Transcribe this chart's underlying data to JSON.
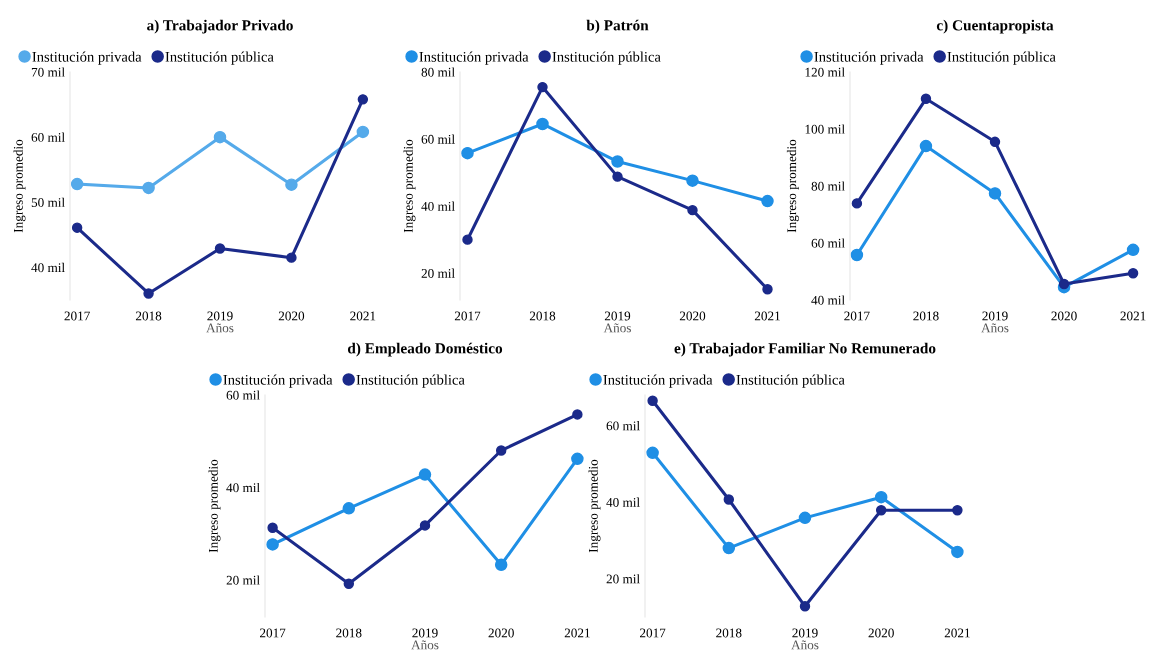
{
  "chart_data": [
    {
      "type": "line",
      "title": "a) Trabajador Privado",
      "xlabel": "Años",
      "ylabel": "Ingreso promedio",
      "categories": [
        "2017",
        "2018",
        "2019",
        "2020",
        "2021"
      ],
      "ylim": [
        35,
        70
      ],
      "yticks": [
        {
          "value": 40,
          "label": "40 mil"
        },
        {
          "value": 50,
          "label": "50 mil"
        },
        {
          "value": 60,
          "label": "60 mil"
        },
        {
          "value": 70,
          "label": "70 mil"
        }
      ],
      "marker": "circle",
      "grid": false,
      "legend": "top left",
      "series": [
        {
          "name": "Institución privada",
          "color": "#55aaea",
          "values": [
            52.8,
            52.2,
            60,
            52.7,
            60.8
          ]
        },
        {
          "name": "Institución pública",
          "color": "#1b2a8a",
          "values": [
            46.1,
            36.0,
            42.9,
            41.5,
            65.8
          ]
        }
      ]
    },
    {
      "type": "line",
      "title": "b) Patrón",
      "xlabel": "Años",
      "ylabel": "Ingreso promedio",
      "categories": [
        "2017",
        "2018",
        "2019",
        "2020",
        "2021"
      ],
      "ylim": [
        12,
        80
      ],
      "yticks": [
        {
          "value": 20,
          "label": "20 mil"
        },
        {
          "value": 40,
          "label": "40 mil"
        },
        {
          "value": 60,
          "label": "60 mil"
        },
        {
          "value": 80,
          "label": "80 mil"
        }
      ],
      "marker": "circle",
      "grid": false,
      "legend": "top left",
      "series": [
        {
          "name": "Institución privada",
          "color": "#1f8fe5",
          "values": [
            55.8,
            64.5,
            53.3,
            47.6,
            41.5
          ]
        },
        {
          "name": "Institución pública",
          "color": "#1b2a8a",
          "values": [
            30,
            75.5,
            48.8,
            38.8,
            15.2
          ]
        }
      ]
    },
    {
      "type": "line",
      "title": "c) Cuentapropista",
      "xlabel": "Años",
      "ylabel": "Ingreso promedio",
      "categories": [
        "2017",
        "2018",
        "2019",
        "2020",
        "2021"
      ],
      "ylim": [
        40,
        120
      ],
      "yticks": [
        {
          "value": 40,
          "label": "40 mil"
        },
        {
          "value": 60,
          "label": "60 mil"
        },
        {
          "value": 80,
          "label": "80 mil"
        },
        {
          "value": 100,
          "label": "100 mil"
        },
        {
          "value": 120,
          "label": "120 mil"
        }
      ],
      "marker": "circle",
      "grid": false,
      "legend": "top left",
      "series": [
        {
          "name": "Institución privada",
          "color": "#1f8fe5",
          "values": [
            55.8,
            94,
            77.4,
            44.5,
            57.6
          ]
        },
        {
          "name": "Institución pública",
          "color": "#1b2a8a",
          "values": [
            73.9,
            110.6,
            95.5,
            45.6,
            49.4
          ]
        }
      ]
    },
    {
      "type": "line",
      "title": "d) Empleado Doméstico",
      "xlabel": "Años",
      "ylabel": "Ingreso promedio",
      "categories": [
        "2017",
        "2018",
        "2019",
        "2020",
        "2021"
      ],
      "ylim": [
        12,
        60
      ],
      "yticks": [
        {
          "value": 20,
          "label": "20 mil"
        },
        {
          "value": 40,
          "label": "40 mil"
        },
        {
          "value": 60,
          "label": "60 mil"
        }
      ],
      "marker": "circle",
      "grid": false,
      "legend": "top left",
      "series": [
        {
          "name": "Institución privada",
          "color": "#1f8fe5",
          "values": [
            27.7,
            35.5,
            42.8,
            23.3,
            46.2
          ]
        },
        {
          "name": "Institución pública",
          "color": "#1b2a8a",
          "values": [
            31.3,
            19.2,
            31.8,
            48,
            55.8
          ]
        }
      ]
    },
    {
      "type": "line",
      "title": "e) Trabajador Familiar No Remunerado",
      "xlabel": "Años",
      "ylabel": "Ingreso promedio",
      "categories": [
        "2017",
        "2018",
        "2019",
        "2020",
        "2021"
      ],
      "ylim": [
        10,
        68
      ],
      "yticks": [
        {
          "value": 20,
          "label": "20 mil"
        },
        {
          "value": 40,
          "label": "40 mil"
        },
        {
          "value": 60,
          "label": "60 mil"
        }
      ],
      "marker": "circle",
      "grid": false,
      "legend": "top left",
      "series": [
        {
          "name": "Institución privada",
          "color": "#1f8fe5",
          "values": [
            52.9,
            28.0,
            35.9,
            41.3,
            27.0
          ]
        },
        {
          "name": "Institución pública",
          "color": "#1b2a8a",
          "values": [
            66.5,
            40.7,
            12.8,
            37.9,
            37.9
          ]
        }
      ]
    }
  ]
}
